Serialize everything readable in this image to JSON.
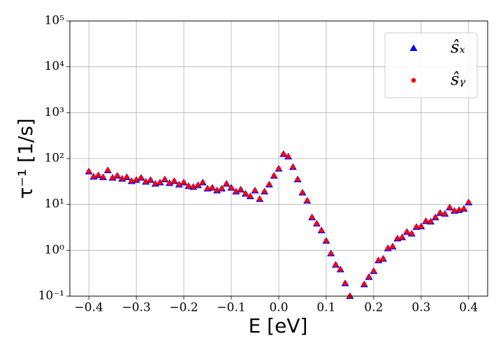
{
  "chart_data": {
    "type": "scatter",
    "x_label": "E [eV]",
    "y_label": "τ⁻¹ [1/s]",
    "log_y": true,
    "grid": true,
    "legend": "upper right",
    "xlim": [
      -0.44,
      0.44
    ],
    "ylim": [
      0.1,
      100000
    ],
    "xticks": [
      {
        "value": -0.4,
        "label": "−0.4"
      },
      {
        "value": -0.3,
        "label": "−0.3"
      },
      {
        "value": -0.2,
        "label": "−0.2"
      },
      {
        "value": -0.1,
        "label": "−0.1"
      },
      {
        "value": 0,
        "label": "0.0"
      },
      0.1,
      0.2,
      0.3,
      0.4
    ],
    "yticks": [
      {
        "value": 0.1,
        "label": "10⁻¹"
      },
      {
        "value": 1,
        "label": "10⁰"
      },
      {
        "value": 10,
        "label": "10¹"
      },
      {
        "value": 100,
        "label": "10²"
      },
      {
        "value": 1000,
        "label": "10³"
      },
      {
        "value": 10000,
        "label": "10⁴"
      },
      {
        "value": 100000,
        "label": "10⁵"
      }
    ],
    "x": [
      -0.4,
      -0.39,
      -0.38,
      -0.37,
      -0.36,
      -0.35,
      -0.34,
      -0.33,
      -0.32,
      -0.31,
      -0.3,
      -0.29,
      -0.28,
      -0.27,
      -0.26,
      -0.25,
      -0.24,
      -0.23,
      -0.22,
      -0.21,
      -0.2,
      -0.19,
      -0.18,
      -0.17,
      -0.16,
      -0.15,
      -0.14,
      -0.13,
      -0.12,
      -0.11,
      -0.1,
      -0.09,
      -0.08,
      -0.07,
      -0.06,
      -0.05,
      -0.04,
      -0.03,
      -0.02,
      -0.01,
      0.0,
      0.01,
      0.02,
      0.03,
      0.04,
      0.05,
      0.06,
      0.07,
      0.08,
      0.09,
      0.1,
      0.11,
      0.12,
      0.13,
      0.14,
      0.15,
      0.16,
      0.17,
      0.18,
      0.19,
      0.2,
      0.21,
      0.22,
      0.23,
      0.24,
      0.25,
      0.26,
      0.27,
      0.28,
      0.29,
      0.3,
      0.31,
      0.32,
      0.33,
      0.34,
      0.35,
      0.36,
      0.37,
      0.38,
      0.39,
      0.4
    ],
    "series": [
      {
        "name": "ŝₓ",
        "color": "#0000ff",
        "marker": "triangle",
        "values": [
          52,
          40,
          43,
          39,
          55,
          38,
          42,
          36,
          39,
          32,
          34,
          38,
          31,
          34,
          28,
          30,
          35,
          29,
          32,
          27,
          30,
          25,
          24,
          26,
          30,
          22,
          23,
          20,
          22,
          28,
          23,
          19,
          21,
          17,
          15,
          20,
          13,
          19,
          27,
          42,
          60,
          125,
          110,
          65,
          35,
          18,
          12,
          5.2,
          3.8,
          2.7,
          1.6,
          0.85,
          0.48,
          0.38,
          0.19,
          0.1,
          null,
          null,
          0.18,
          0.26,
          0.35,
          0.6,
          0.65,
          1.1,
          1.2,
          1.8,
          1.9,
          2.5,
          2.3,
          3.2,
          3.3,
          4.3,
          4.2,
          5.2,
          6.5,
          6.2,
          8.5,
          7.2,
          7.5,
          8.0,
          11
        ]
      },
      {
        "name": "ŝᵧ",
        "color": "#ff0000",
        "marker": "circle",
        "values": [
          52,
          40,
          43,
          39,
          55,
          38,
          42,
          36,
          39,
          32,
          34,
          38,
          31,
          34,
          28,
          30,
          35,
          29,
          32,
          27,
          30,
          25,
          24,
          26,
          30,
          22,
          23,
          20,
          22,
          28,
          23,
          19,
          21,
          17,
          15,
          20,
          13,
          19,
          27,
          42,
          60,
          125,
          110,
          65,
          35,
          18,
          12,
          5.2,
          3.8,
          2.7,
          1.6,
          0.85,
          0.48,
          0.38,
          0.19,
          0.1,
          null,
          null,
          0.18,
          0.26,
          0.35,
          0.6,
          0.65,
          1.1,
          1.2,
          1.8,
          1.9,
          2.5,
          2.3,
          3.2,
          3.3,
          4.3,
          4.2,
          5.2,
          6.5,
          6.2,
          8.5,
          7.2,
          7.5,
          8.0,
          11
        ]
      }
    ]
  }
}
